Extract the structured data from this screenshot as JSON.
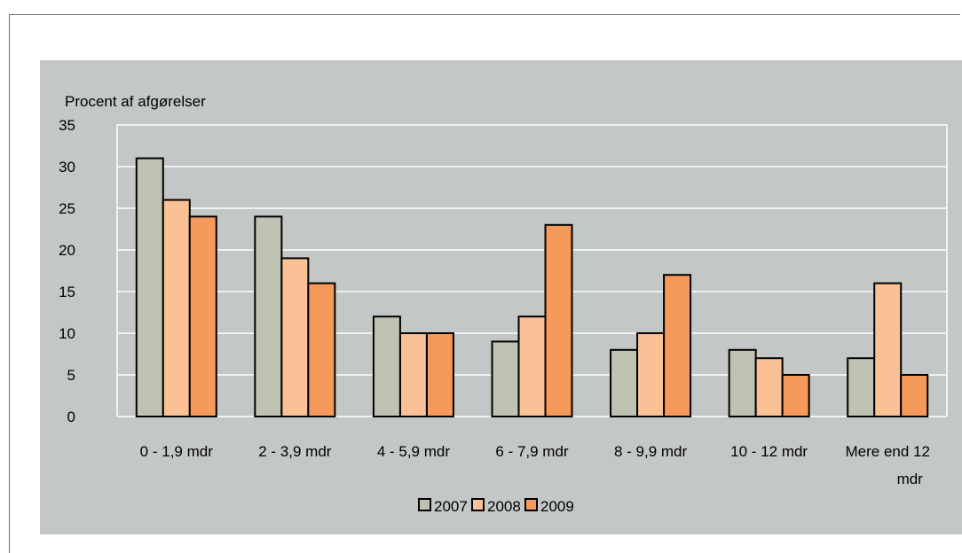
{
  "chart_data": {
    "type": "bar",
    "title": "",
    "ylabel": "Procent af  afgørelser",
    "xlabel": "",
    "ylim": [
      0,
      35
    ],
    "yticks": [
      0,
      5,
      10,
      15,
      20,
      25,
      30,
      35
    ],
    "grid": true,
    "legend_position": "bottom",
    "categories": [
      [
        "0 - 1,9 mdr"
      ],
      [
        "2 - 3,9 mdr"
      ],
      [
        "4 - 5,9 mdr"
      ],
      [
        "6 - 7,9 mdr"
      ],
      [
        "8 - 9,9 mdr"
      ],
      [
        "10 - 12 mdr"
      ],
      [
        "Mere end 12",
        "mdr"
      ]
    ],
    "series": [
      {
        "name": "2007",
        "color": "#bfc2b3",
        "values": [
          31,
          24,
          12,
          9,
          8,
          8,
          7
        ]
      },
      {
        "name": "2008",
        "color": "#fac196",
        "values": [
          26,
          19,
          10,
          12,
          10,
          7,
          16
        ]
      },
      {
        "name": "2009",
        "color": "#f59a5a",
        "values": [
          24,
          16,
          10,
          23,
          17,
          5,
          5
        ]
      }
    ]
  }
}
